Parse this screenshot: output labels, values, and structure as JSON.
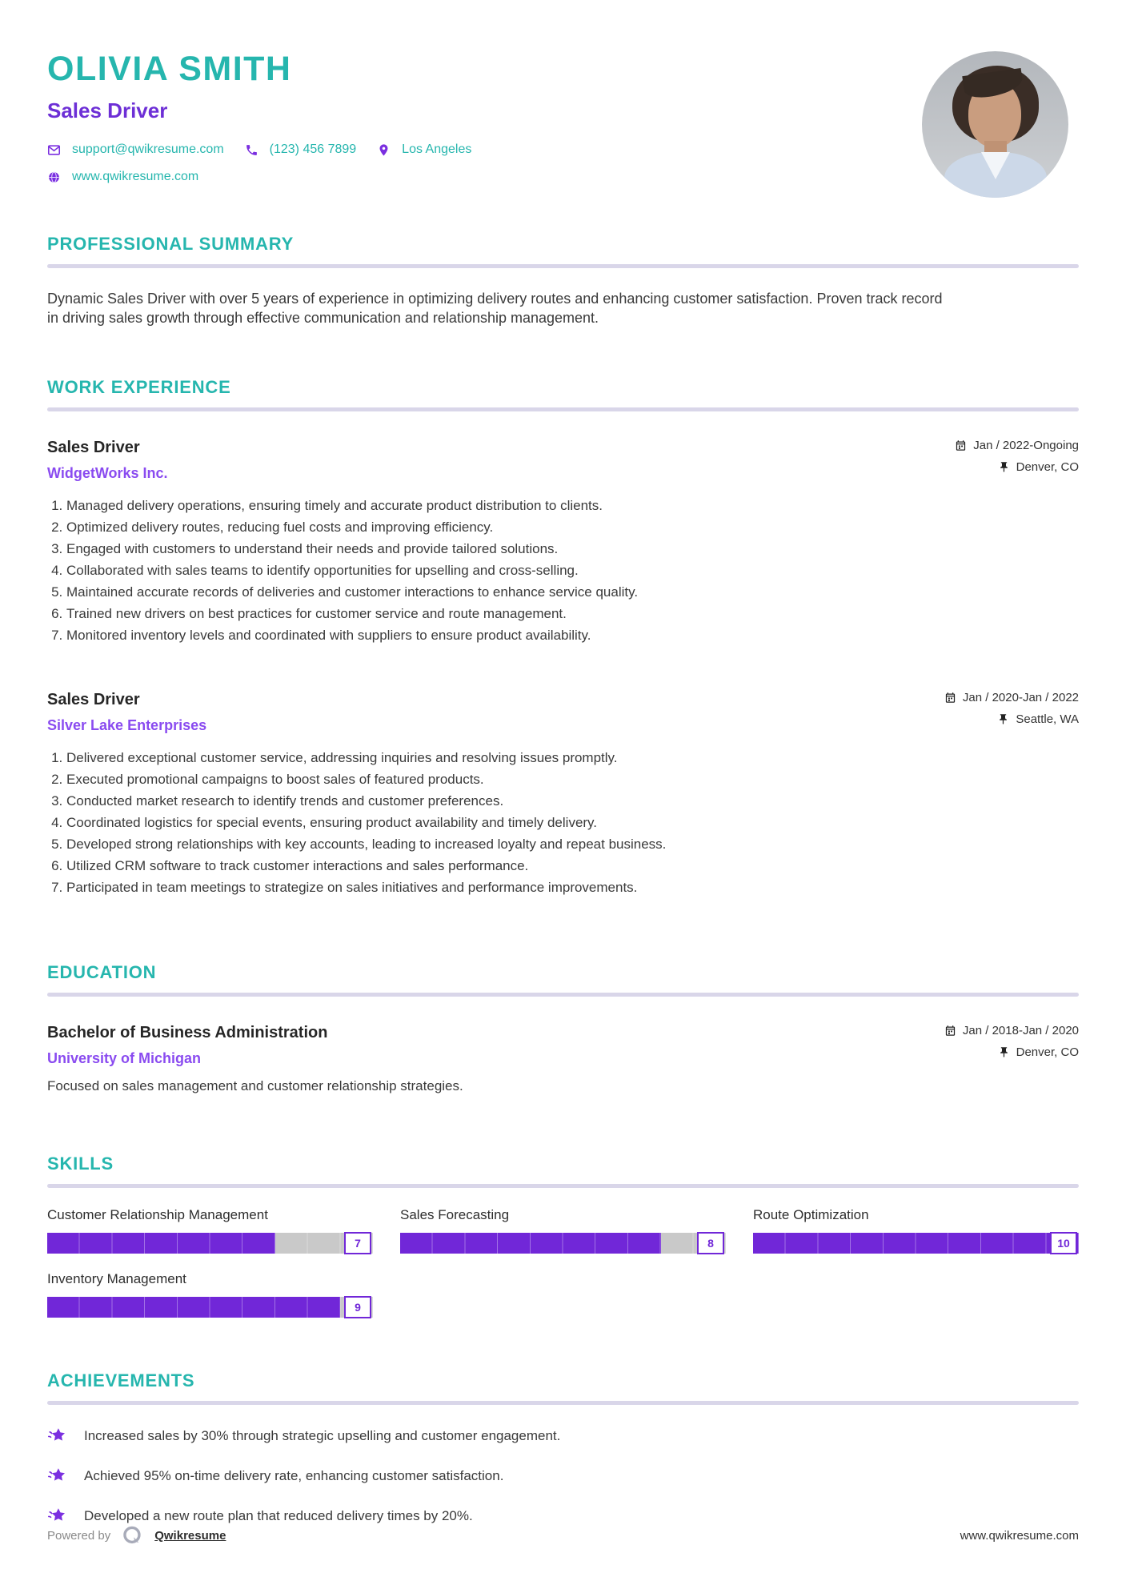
{
  "colors": {
    "teal": "#26b6ae",
    "purple": "#7127d8",
    "purple_light": "#8a4bf0",
    "heading_rule": "#d9d6e9",
    "text": "#3a3a3a",
    "track_gray": "#c9c9c9"
  },
  "header": {
    "name": "OLIVIA SMITH",
    "title": "Sales Driver",
    "email": "support@qwikresume.com",
    "phone": "(123) 456 7899",
    "location": "Los Angeles",
    "website": "www.qwikresume.com"
  },
  "summary": {
    "heading": "PROFESSIONAL SUMMARY",
    "text": "Dynamic Sales Driver with over 5 years of experience in optimizing delivery routes and enhancing customer satisfaction. Proven track record in driving sales growth through effective communication and relationship management."
  },
  "experience": {
    "heading": "WORK EXPERIENCE",
    "jobs": [
      {
        "title": "Sales Driver",
        "company": "WidgetWorks Inc.",
        "dates": "Jan / 2022-Ongoing",
        "location": "Denver, CO",
        "bullets": [
          "Managed delivery operations, ensuring timely and accurate product distribution to clients.",
          "Optimized delivery routes, reducing fuel costs and improving efficiency.",
          "Engaged with customers to understand their needs and provide tailored solutions.",
          "Collaborated with sales teams to identify opportunities for upselling and cross-selling.",
          "Maintained accurate records of deliveries and customer interactions to enhance service quality.",
          "Trained new drivers on best practices for customer service and route management.",
          "Monitored inventory levels and coordinated with suppliers to ensure product availability."
        ]
      },
      {
        "title": "Sales Driver",
        "company": "Silver Lake Enterprises",
        "dates": "Jan / 2020-Jan / 2022",
        "location": "Seattle, WA",
        "bullets": [
          "Delivered exceptional customer service, addressing inquiries and resolving issues promptly.",
          "Executed promotional campaigns to boost sales of featured products.",
          "Conducted market research to identify trends and customer preferences.",
          "Coordinated logistics for special events, ensuring product availability and timely delivery.",
          "Developed strong relationships with key accounts, leading to increased loyalty and repeat business.",
          "Utilized CRM software to track customer interactions and sales performance.",
          "Participated in team meetings to strategize on sales initiatives and performance improvements."
        ]
      }
    ]
  },
  "education": {
    "heading": "EDUCATION",
    "degree": "Bachelor of Business Administration",
    "school": "University of Michigan",
    "dates": "Jan / 2018-Jan / 2020",
    "location": "Denver, CO",
    "note": "Focused on sales management and customer relationship strategies."
  },
  "skills": {
    "heading": "SKILLS",
    "max_level": 10,
    "items": [
      {
        "name": "Customer Relationship Management",
        "level": 7
      },
      {
        "name": "Sales Forecasting",
        "level": 8
      },
      {
        "name": "Route Optimization",
        "level": 10
      },
      {
        "name": "Inventory Management",
        "level": 9
      }
    ]
  },
  "achievements": {
    "heading": "ACHIEVEMENTS",
    "items": [
      "Increased sales by 30% through strategic upselling and customer engagement.",
      "Achieved 95% on-time delivery rate, enhancing customer satisfaction.",
      "Developed a new route plan that reduced delivery times by 20%."
    ]
  },
  "footer": {
    "powered_by": "Powered by",
    "brand": "Qwikresume",
    "site": "www.qwikresume.com"
  }
}
